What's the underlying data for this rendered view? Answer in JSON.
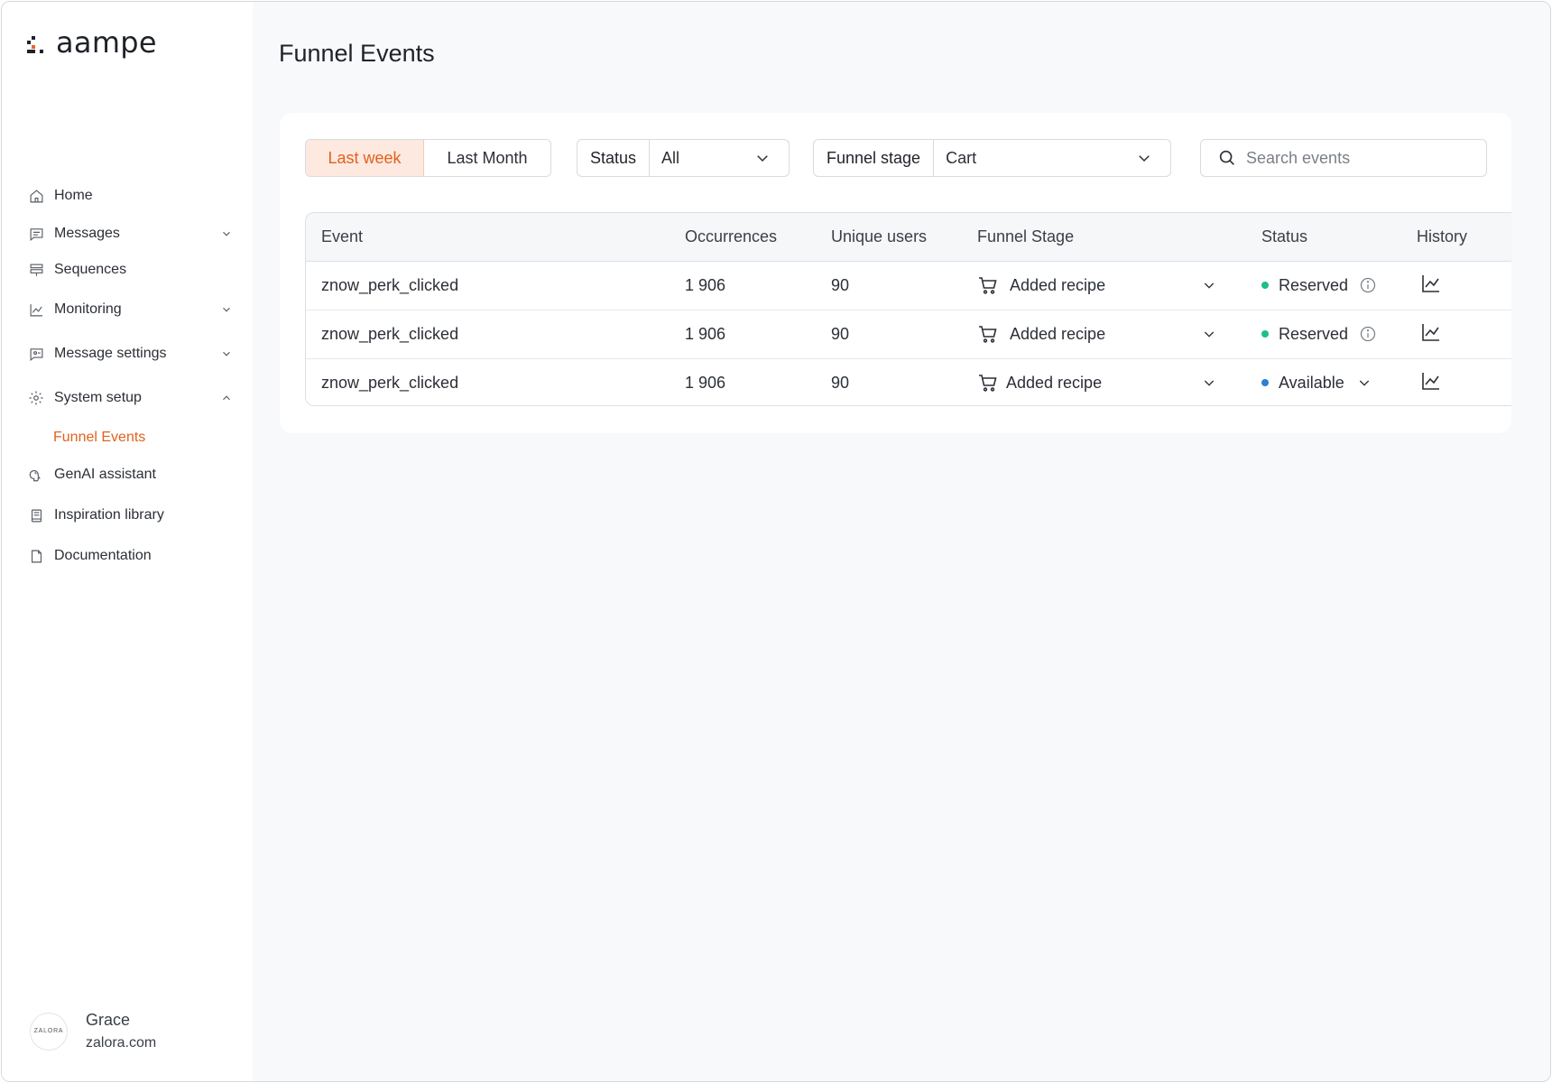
{
  "brand": {
    "name": "aampe",
    "accent": "#e2611f"
  },
  "sidebar": {
    "items": [
      {
        "label": "Home",
        "icon": "home-icon",
        "expandable": false
      },
      {
        "label": "Messages",
        "icon": "message-icon",
        "expandable": true,
        "expanded": false
      },
      {
        "label": "Sequences",
        "icon": "sequences-icon",
        "expandable": false
      },
      {
        "label": "Monitoring",
        "icon": "chart-line-icon",
        "expandable": true,
        "expanded": false
      },
      {
        "label": "Message settings",
        "icon": "message-settings-icon",
        "expandable": true,
        "expanded": false
      },
      {
        "label": "System setup",
        "icon": "gear-icon",
        "expandable": true,
        "expanded": true
      },
      {
        "label": "GenAI assistant",
        "icon": "brain-icon",
        "expandable": false
      },
      {
        "label": "Inspiration library",
        "icon": "book-icon",
        "expandable": false
      },
      {
        "label": "Documentation",
        "icon": "document-icon",
        "expandable": false
      }
    ],
    "active_subitem": "Funnel Events"
  },
  "user": {
    "name": "Grace",
    "domain": "zalora.com",
    "avatar_text": "ZALORA"
  },
  "page": {
    "title": "Funnel Events"
  },
  "filters": {
    "range_options": [
      "Last week",
      "Last Month"
    ],
    "range_selected": "Last week",
    "status": {
      "label": "Status",
      "value": "All"
    },
    "funnel_stage": {
      "label": "Funnel stage",
      "value": "Cart"
    },
    "search": {
      "placeholder": "Search events",
      "value": ""
    }
  },
  "table": {
    "columns": [
      "Event",
      "Occurrences",
      "Unique users",
      "Funnel Stage",
      "Status",
      "History"
    ],
    "rows": [
      {
        "event": "znow_perk_clicked",
        "occurrences": "1 906",
        "unique_users": "90",
        "funnel_stage": "Added recipe",
        "status": "Reserved",
        "status_color": "#1fbf83",
        "status_control": "info-icon"
      },
      {
        "event": "znow_perk_clicked",
        "occurrences": "1 906",
        "unique_users": "90",
        "funnel_stage": "Added recipe",
        "status": "Reserved",
        "status_color": "#1fbf83",
        "status_control": "info-icon"
      },
      {
        "event": "znow_perk_clicked",
        "occurrences": "1 906",
        "unique_users": "90",
        "funnel_stage": "Added recipe",
        "status": "Available",
        "status_color": "#2f7fd0",
        "status_control": "chevron-down-icon"
      }
    ]
  }
}
